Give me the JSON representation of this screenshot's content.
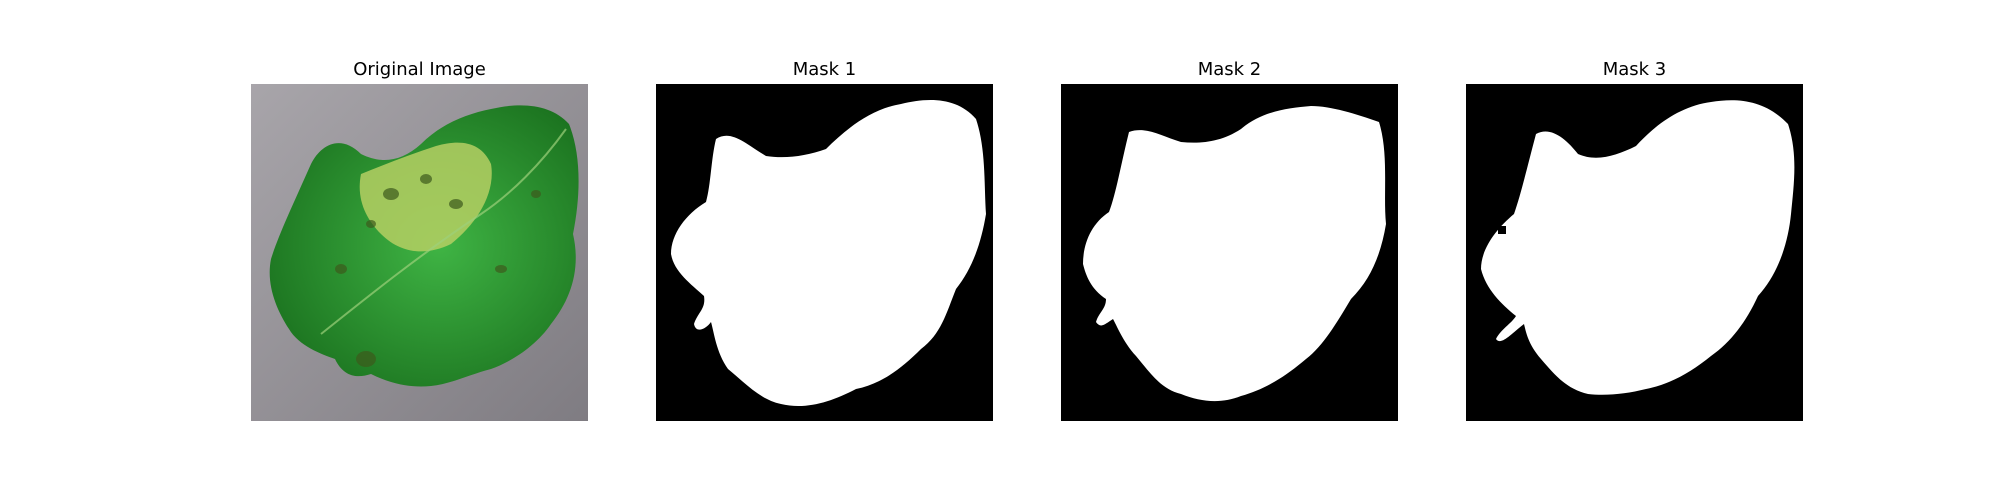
{
  "figure": {
    "panels": [
      {
        "title": "Original Image",
        "kind": "photo",
        "subject": "leaf"
      },
      {
        "title": "Mask 1",
        "kind": "mask"
      },
      {
        "title": "Mask 2",
        "kind": "mask"
      },
      {
        "title": "Mask 3",
        "kind": "mask"
      }
    ]
  },
  "colors": {
    "background": "#ffffff",
    "mask_fg": "#ffffff",
    "mask_bg": "#000000",
    "leaf_dark": "#1f7a1f",
    "leaf_mid": "#35a83a",
    "leaf_light": "#b9d36a",
    "ground": "#8f8c91"
  }
}
